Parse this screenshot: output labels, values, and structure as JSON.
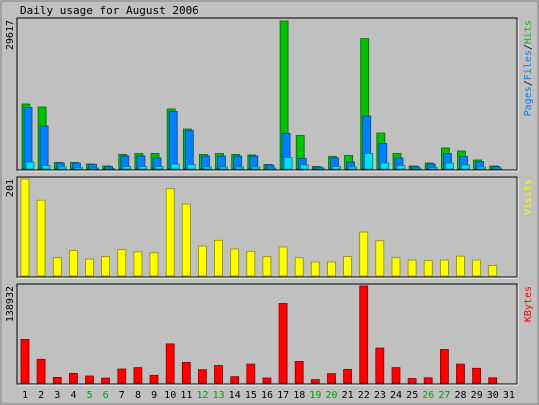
{
  "chart_data": [
    {
      "type": "bar",
      "title": "Daily usage for August 2006",
      "panel": "hits-files-pages",
      "ylabel_max": "29617",
      "legend": [
        "Pages",
        "/",
        "Files",
        "/",
        "Hits"
      ],
      "legend_colors": [
        "#0080ff",
        "#000000",
        "#0080ff",
        "#000000",
        "#00c000"
      ],
      "categories": [
        "1",
        "2",
        "3",
        "4",
        "5",
        "6",
        "7",
        "8",
        "9",
        "10",
        "11",
        "12",
        "13",
        "14",
        "15",
        "16",
        "17",
        "18",
        "19",
        "20",
        "21",
        "22",
        "23",
        "24",
        "25",
        "26",
        "27",
        "28",
        "29",
        "30",
        "31"
      ],
      "series": [
        {
          "name": "Hits",
          "color": "#00c000",
          "values": [
            13000,
            12400,
            1300,
            1300,
            1000,
            600,
            2900,
            3100,
            3100,
            12000,
            8000,
            2900,
            3100,
            2900,
            2800,
            900,
            29617,
            6700,
            500,
            2500,
            2700,
            26100,
            7200,
            3100,
            600,
            1200,
            4200,
            3600,
            1800,
            600,
            0
          ]
        },
        {
          "name": "Files",
          "color": "#0080ff",
          "values": [
            12300,
            8600,
            1200,
            1200,
            900,
            500,
            2600,
            2600,
            2200,
            11500,
            7700,
            2600,
            2600,
            2600,
            2600,
            800,
            7100,
            2100,
            400,
            2200,
            1400,
            10600,
            5100,
            2200,
            500,
            1000,
            3100,
            2500,
            1500,
            500,
            0
          ]
        },
        {
          "name": "Pages",
          "color": "#00e0ff",
          "values": [
            1400,
            700,
            400,
            300,
            200,
            100,
            500,
            500,
            500,
            1000,
            900,
            400,
            400,
            400,
            400,
            200,
            2300,
            800,
            200,
            500,
            400,
            3100,
            1200,
            700,
            200,
            300,
            1200,
            800,
            400,
            200,
            0
          ]
        }
      ],
      "ylim": [
        0,
        29617
      ]
    },
    {
      "type": "bar",
      "panel": "visits",
      "ylabel_max": "201",
      "legend": [
        "Visits"
      ],
      "legend_colors": [
        "#ffff00"
      ],
      "categories": [
        "1",
        "2",
        "3",
        "4",
        "5",
        "6",
        "7",
        "8",
        "9",
        "10",
        "11",
        "12",
        "13",
        "14",
        "15",
        "16",
        "17",
        "18",
        "19",
        "20",
        "21",
        "22",
        "23",
        "24",
        "25",
        "26",
        "27",
        "28",
        "29",
        "30",
        "31"
      ],
      "series": [
        {
          "name": "Visits",
          "color": "#ffff00",
          "values": [
            201,
            157,
            38,
            53,
            35,
            40,
            55,
            50,
            48,
            181,
            149,
            62,
            74,
            56,
            51,
            40,
            60,
            38,
            29,
            29,
            40,
            91,
            73,
            38,
            33,
            32,
            33,
            41,
            33,
            22,
            0
          ]
        }
      ],
      "ylim": [
        0,
        201
      ]
    },
    {
      "type": "bar",
      "panel": "kbytes",
      "ylabel_max": "138932",
      "legend": [
        "KBytes"
      ],
      "legend_colors": [
        "#ff0000"
      ],
      "categories": [
        "1",
        "2",
        "3",
        "4",
        "5",
        "6",
        "7",
        "8",
        "9",
        "10",
        "11",
        "12",
        "13",
        "14",
        "15",
        "16",
        "17",
        "18",
        "19",
        "20",
        "21",
        "22",
        "23",
        "24",
        "25",
        "26",
        "27",
        "28",
        "29",
        "30",
        "31"
      ],
      "series": [
        {
          "name": "KBytes",
          "color": "#ff0000",
          "values": [
            62500,
            34000,
            8000,
            13800,
            10000,
            7000,
            20000,
            22000,
            11000,
            56000,
            29500,
            19000,
            25000,
            9000,
            27000,
            7200,
            114000,
            31000,
            4800,
            13500,
            19500,
            138932,
            50000,
            22000,
            6500,
            7500,
            48000,
            27000,
            21000,
            7500,
            0
          ]
        }
      ],
      "ylim": [
        0,
        138932
      ]
    }
  ],
  "weekend_days": [
    "5",
    "6",
    "12",
    "13",
    "19",
    "20",
    "26",
    "27"
  ],
  "colors": {
    "background": "#c0c0c0",
    "axis": "#000000",
    "weekday_label": "#000000",
    "weekend_label": "#00a000"
  }
}
